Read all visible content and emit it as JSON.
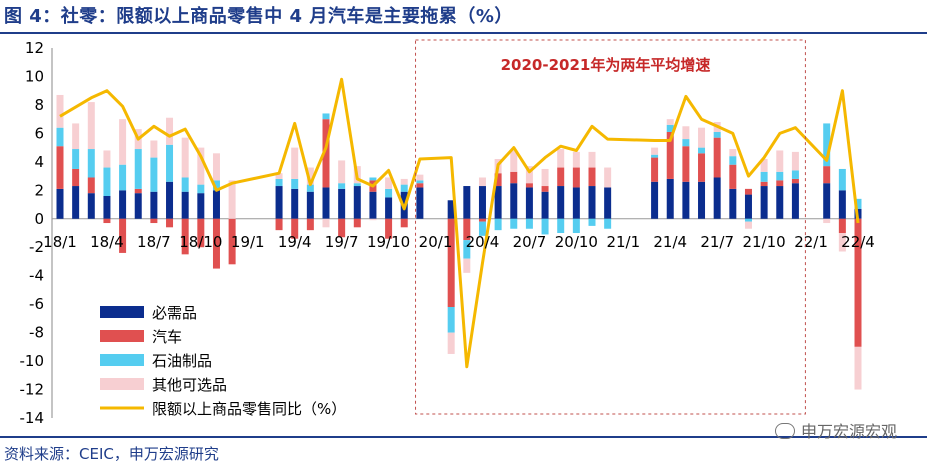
{
  "title": "图 4：社零：限额以上商品零售中 4 月汽车是主要拖累（%）",
  "source": "资料来源：CEIC，申万宏源研究",
  "watermark": "申万宏源宏观",
  "colors": {
    "necessities": "#0b2d8e",
    "autos": "#e05050",
    "petroleum": "#55cdf0",
    "other": "#f7cfd2",
    "line": "#f5b800",
    "annotation": "#c62828",
    "title": "#1f3d8a"
  },
  "chart_data": {
    "type": "bar",
    "stacked": true,
    "ylim": [
      -14,
      12
    ],
    "yticks": [
      -14,
      -12,
      -10,
      -8,
      -6,
      -4,
      -2,
      0,
      2,
      4,
      6,
      8,
      10,
      12
    ],
    "x_tick_labels": [
      "18/1",
      "18/4",
      "18/7",
      "18/10",
      "19/1",
      "19/4",
      "19/7",
      "19/10",
      "20/1",
      "20/4",
      "20/7",
      "20/10",
      "21/1",
      "21/4",
      "21/7",
      "21/10",
      "22/1",
      "22/4"
    ],
    "periods": [
      "18/1",
      "18/2",
      "18/3",
      "18/4",
      "18/5",
      "18/6",
      "18/7",
      "18/8",
      "18/9",
      "18/10",
      "18/11",
      "18/12",
      "19/1",
      "19/2",
      "19/3",
      "19/4",
      "19/5",
      "19/6",
      "19/7",
      "19/8",
      "19/9",
      "19/10",
      "19/11",
      "19/12",
      "20/1",
      "20/2",
      "20/3",
      "20/4",
      "20/5",
      "20/6",
      "20/7",
      "20/8",
      "20/9",
      "20/10",
      "20/11",
      "20/12",
      "21/1",
      "21/2",
      "21/3",
      "21/4",
      "21/5",
      "21/6",
      "21/7",
      "21/8",
      "21/9",
      "21/10",
      "21/11",
      "21/12",
      "22/1",
      "22/2",
      "22/3",
      "22/4"
    ],
    "series": [
      {
        "name": "必需品",
        "values": [
          2.1,
          2.3,
          1.8,
          1.6,
          2.0,
          1.8,
          1.9,
          2.6,
          1.9,
          1.8,
          2.0,
          null,
          null,
          null,
          2.3,
          2.1,
          1.9,
          2.2,
          2.1,
          2.3,
          1.9,
          1.5,
          1.9,
          2.2,
          null,
          1.3,
          2.3,
          2.3,
          2.3,
          2.5,
          2.2,
          1.9,
          2.3,
          2.2,
          2.3,
          2.2,
          null,
          null,
          2.6,
          2.8,
          2.6,
          2.6,
          2.9,
          2.1,
          1.7,
          2.3,
          2.3,
          2.5,
          null,
          2.5,
          2.0,
          0.7
        ]
      },
      {
        "name": "汽车",
        "values": [
          3.0,
          1.2,
          1.1,
          -0.3,
          -2.4,
          0.3,
          -0.3,
          -0.6,
          -2.5,
          -2.0,
          -3.5,
          -3.2,
          null,
          null,
          -0.8,
          -1.4,
          -0.8,
          4.8,
          -1.3,
          -0.6,
          0.8,
          -1.4,
          -0.6,
          0.3,
          null,
          -6.2,
          -1.5,
          -0.2,
          0.9,
          0.8,
          0.3,
          0.4,
          1.3,
          1.4,
          1.3,
          null,
          null,
          null,
          1.7,
          3.3,
          2.5,
          2.0,
          2.8,
          1.7,
          0.4,
          0.3,
          0.4,
          0.3,
          null,
          1.2,
          -1.0,
          -9.0
        ]
      },
      {
        "name": "石油制品",
        "values": [
          1.3,
          1.4,
          2.0,
          2.0,
          1.8,
          2.8,
          2.4,
          2.6,
          1.0,
          0.6,
          0.7,
          null,
          null,
          null,
          0.5,
          0.7,
          0.5,
          0.4,
          0.4,
          0.2,
          0.2,
          0.6,
          0.5,
          0.2,
          null,
          -1.8,
          -1.3,
          -1.0,
          -0.8,
          -0.7,
          -0.7,
          -1.1,
          -1.0,
          -1.0,
          -0.5,
          -0.7,
          null,
          null,
          0.2,
          0.5,
          0.5,
          0.4,
          0.4,
          0.6,
          -0.2,
          0.7,
          0.6,
          0.6,
          null,
          3.0,
          1.5,
          0.7
        ]
      },
      {
        "name": "其他可选品",
        "values": [
          2.3,
          1.8,
          3.3,
          1.2,
          3.2,
          1.4,
          1.2,
          1.9,
          2.8,
          2.6,
          1.9,
          2.7,
          null,
          null,
          0.4,
          2.2,
          1.2,
          -0.6,
          1.6,
          1.2,
          -0.1,
          0.8,
          0.4,
          0.4,
          null,
          -1.5,
          -1.0,
          0.6,
          1.0,
          1.5,
          1.2,
          1.2,
          1.3,
          1.1,
          1.1,
          1.4,
          null,
          null,
          0.5,
          0.4,
          0.9,
          1.4,
          0.7,
          0.5,
          -0.5,
          0.9,
          1.5,
          1.3,
          null,
          -0.3,
          -1.3,
          -3.0
        ]
      },
      {
        "name": "限额以上商品零售同比（%）",
        "type": "line",
        "values": [
          7.2,
          null,
          8.5,
          9.0,
          7.9,
          5.6,
          6.5,
          5.8,
          6.3,
          4.4,
          2.0,
          2.5,
          null,
          null,
          3.2,
          6.7,
          2.4,
          5.0,
          9.8,
          2.8,
          2.3,
          3.4,
          0.7,
          4.2,
          null,
          4.3,
          -10.4,
          -3.1,
          3.8,
          5.0,
          3.3,
          4.3,
          5.1,
          4.8,
          6.5,
          5.6,
          null,
          null,
          5.5,
          5.5,
          8.6,
          7.0,
          6.5,
          6.0,
          3.0,
          4.3,
          6.0,
          6.4,
          null,
          4.1,
          9.0,
          -0.3
        ]
      }
    ],
    "annotation": "2020-2021年为两年平均增速",
    "legend_position": "bottom-left"
  }
}
